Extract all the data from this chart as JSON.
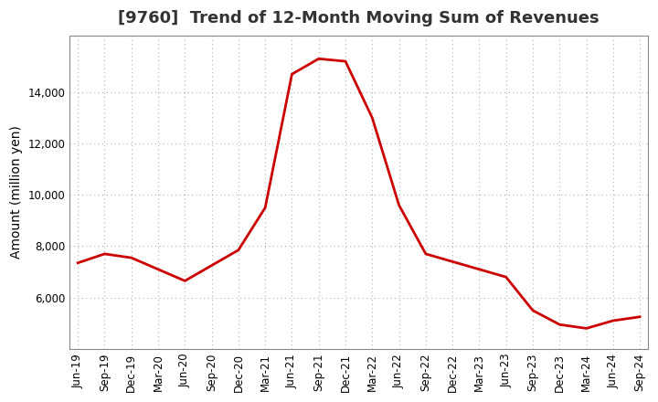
{
  "title": "[9760]  Trend of 12-Month Moving Sum of Revenues",
  "ylabel": "Amount (million yen)",
  "line_color": "#cc0000",
  "background_color": "#ffffff",
  "grid_color": "#b0b0b0",
  "x_labels": [
    "Jun-19",
    "Sep-19",
    "Dec-19",
    "Mar-20",
    "Jun-20",
    "Sep-20",
    "Dec-20",
    "Mar-21",
    "Jun-21",
    "Sep-21",
    "Dec-21",
    "Mar-22",
    "Jun-22",
    "Sep-22",
    "Dec-22",
    "Mar-23",
    "Jun-23",
    "Sep-23",
    "Dec-23",
    "Mar-24",
    "Jun-24",
    "Sep-24"
  ],
  "values": [
    7350,
    7700,
    7550,
    7100,
    6650,
    7250,
    7850,
    9500,
    14700,
    15300,
    15200,
    13000,
    9600,
    7700,
    7400,
    7100,
    6800,
    5500,
    4950,
    4800,
    5100,
    5250
  ],
  "ylim_min": 4000,
  "ylim_max": 16200,
  "yticks": [
    6000,
    8000,
    10000,
    12000,
    14000
  ],
  "title_fontsize": 13,
  "axis_label_fontsize": 10,
  "tick_fontsize": 8.5
}
